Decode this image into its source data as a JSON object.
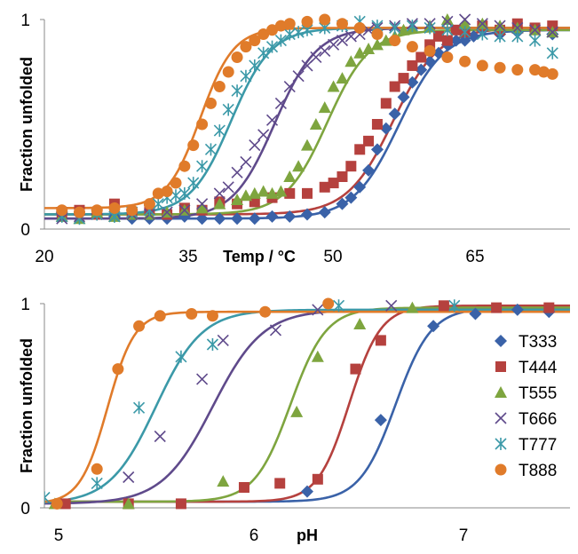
{
  "chart_data": [
    {
      "type": "scatter",
      "title": "",
      "xlabel": "Temp / °C",
      "ylabel": "Fraction unfolded",
      "xlim": [
        18,
        78
      ],
      "ylim": [
        0,
        1
      ],
      "xticks": [
        "20",
        "35",
        "50",
        "65"
      ],
      "yticks": [
        "0",
        "1"
      ],
      "grid": false,
      "legend": "none",
      "series": [
        {
          "name": "T333",
          "color": "#3a62a8",
          "marker": "diamond",
          "fit": {
            "mid": 58.5,
            "width": 2.6,
            "low": 0.05,
            "high": 0.95
          },
          "x": [
            20,
            22,
            24,
            26,
            28,
            30,
            32,
            34,
            36,
            38,
            40,
            42,
            44,
            46,
            48,
            50,
            52,
            53,
            54,
            55,
            56,
            57,
            58,
            59,
            60,
            61,
            62,
            63,
            64,
            65,
            66,
            67,
            68,
            70,
            72,
            74,
            76
          ],
          "y": [
            0.08,
            0.07,
            0.07,
            0.06,
            0.05,
            0.05,
            0.05,
            0.06,
            0.05,
            0.05,
            0.05,
            0.05,
            0.06,
            0.06,
            0.07,
            0.08,
            0.12,
            0.15,
            0.2,
            0.28,
            0.38,
            0.48,
            0.55,
            0.63,
            0.7,
            0.76,
            0.8,
            0.84,
            0.88,
            0.9,
            0.9,
            0.92,
            0.95,
            0.93,
            0.94,
            0.95,
            0.93
          ]
        },
        {
          "name": "T444",
          "color": "#b5413e",
          "marker": "square",
          "fit": {
            "mid": 57.8,
            "width": 2.6,
            "low": 0.07,
            "high": 0.96
          },
          "x": [
            20,
            22,
            24,
            26,
            28,
            30,
            32,
            34,
            36,
            38,
            40,
            42,
            44,
            46,
            48,
            50,
            51,
            52,
            53,
            54,
            55,
            56,
            57,
            58,
            59,
            60,
            61,
            62,
            63,
            64,
            65,
            66,
            68,
            70,
            72,
            74,
            76
          ],
          "y": [
            0.08,
            0.09,
            0.07,
            0.12,
            0.08,
            0.09,
            0.07,
            0.1,
            0.09,
            0.13,
            0.12,
            0.13,
            0.15,
            0.17,
            0.17,
            0.2,
            0.22,
            0.25,
            0.3,
            0.38,
            0.42,
            0.5,
            0.6,
            0.68,
            0.72,
            0.78,
            0.82,
            0.88,
            0.92,
            0.9,
            0.95,
            0.94,
            0.97,
            0.95,
            0.98,
            0.96,
            0.97
          ]
        },
        {
          "name": "T555",
          "color": "#7ea53f",
          "marker": "triangle",
          "fit": {
            "mid": 50.3,
            "width": 2.4,
            "low": 0.07,
            "high": 0.95
          },
          "x": [
            20,
            22,
            24,
            26,
            28,
            30,
            32,
            34,
            36,
            38,
            40,
            41,
            42,
            43,
            44,
            45,
            46,
            47,
            48,
            49,
            50,
            51,
            52,
            53,
            54,
            55,
            56,
            57,
            58,
            59,
            60,
            62,
            64,
            66,
            68,
            70,
            72,
            74,
            76
          ],
          "y": [
            0.06,
            0.05,
            0.08,
            0.06,
            0.07,
            0.07,
            0.08,
            0.09,
            0.1,
            0.12,
            0.14,
            0.16,
            0.17,
            0.18,
            0.17,
            0.18,
            0.25,
            0.3,
            0.4,
            0.5,
            0.58,
            0.68,
            0.72,
            0.8,
            0.84,
            0.86,
            0.88,
            0.9,
            0.92,
            0.95,
            0.96,
            0.97,
            1.0,
            0.98,
            0.98,
            0.97,
            0.96,
            0.95,
            0.94
          ]
        },
        {
          "name": "T666",
          "color": "#5f4a8b",
          "marker": "x",
          "fit": {
            "mid": 44.3,
            "width": 2.4,
            "low": 0.05,
            "high": 0.96
          },
          "x": [
            20,
            22,
            24,
            26,
            28,
            30,
            32,
            34,
            36,
            38,
            39,
            40,
            41,
            42,
            43,
            44,
            45,
            46,
            47,
            48,
            49,
            50,
            51,
            52,
            53,
            54,
            55,
            56,
            58,
            60,
            62,
            64,
            66,
            68,
            70,
            72,
            74,
            76
          ],
          "y": [
            0.05,
            0.06,
            0.07,
            0.06,
            0.07,
            0.07,
            0.08,
            0.09,
            0.12,
            0.17,
            0.2,
            0.27,
            0.32,
            0.4,
            0.45,
            0.52,
            0.6,
            0.68,
            0.73,
            0.78,
            0.82,
            0.85,
            0.88,
            0.9,
            0.92,
            0.93,
            0.95,
            0.96,
            0.97,
            0.98,
            0.98,
            0.99,
            1.0,
            0.98,
            0.97,
            0.96,
            0.95,
            0.94
          ]
        },
        {
          "name": "T777",
          "color": "#3b99a8",
          "marker": "asterisk",
          "fit": {
            "mid": 39.3,
            "width": 2.3,
            "low": 0.07,
            "high": 0.96
          },
          "x": [
            20,
            22,
            24,
            26,
            28,
            30,
            31,
            32,
            33,
            34,
            35,
            36,
            37,
            38,
            39,
            40,
            41,
            42,
            43,
            44,
            45,
            46,
            47,
            48,
            50,
            52,
            54,
            56,
            58,
            60,
            62,
            64,
            66,
            68,
            70,
            72,
            74,
            76
          ],
          "y": [
            0.06,
            0.05,
            0.07,
            0.06,
            0.08,
            0.09,
            0.12,
            0.15,
            0.16,
            0.17,
            0.22,
            0.3,
            0.38,
            0.47,
            0.57,
            0.66,
            0.73,
            0.78,
            0.84,
            0.87,
            0.9,
            0.93,
            0.94,
            0.95,
            0.96,
            0.97,
            0.99,
            0.97,
            0.96,
            0.97,
            0.96,
            0.95,
            0.94,
            0.93,
            0.92,
            0.92,
            0.9,
            0.84
          ]
        },
        {
          "name": "T888",
          "color": "#e07b2a",
          "marker": "circle",
          "fit": {
            "mid": 35.8,
            "width": 1.9,
            "low": 0.1,
            "high": 0.96
          },
          "x": [
            20,
            22,
            24,
            26,
            28,
            30,
            31,
            32,
            33,
            34,
            35,
            36,
            37,
            38,
            39,
            40,
            41,
            42,
            43,
            44,
            45,
            46,
            48,
            50,
            52,
            54,
            56,
            58,
            60,
            62,
            64,
            66,
            68,
            70,
            72,
            74,
            75,
            76
          ],
          "y": [
            0.09,
            0.08,
            0.09,
            0.1,
            0.09,
            0.12,
            0.17,
            0.18,
            0.22,
            0.3,
            0.4,
            0.5,
            0.6,
            0.68,
            0.75,
            0.82,
            0.87,
            0.9,
            0.93,
            0.95,
            0.97,
            0.98,
            0.99,
            1.0,
            0.98,
            0.96,
            0.93,
            0.9,
            0.87,
            0.85,
            0.82,
            0.8,
            0.78,
            0.77,
            0.76,
            0.76,
            0.75,
            0.74
          ]
        }
      ]
    },
    {
      "type": "scatter",
      "title": "",
      "xlabel": "pH",
      "ylabel": "Fraction unfolded",
      "xlim": [
        5.0,
        7.5
      ],
      "ylim": [
        0,
        1
      ],
      "xticks": [
        "5",
        "6",
        "7"
      ],
      "yticks": [
        "0",
        "1"
      ],
      "grid": false,
      "legend": "right",
      "series": [
        {
          "name": "T333",
          "color": "#3a62a8",
          "marker": "diamond",
          "fit": {
            "mid": 6.67,
            "width": 0.085,
            "low": 0.03,
            "high": 0.98
          },
          "x": [
            6.25,
            6.6,
            6.85,
            7.05,
            7.25,
            7.4
          ],
          "y": [
            0.08,
            0.43,
            0.89,
            0.95,
            0.97,
            0.96
          ]
        },
        {
          "name": "T444",
          "color": "#b5413e",
          "marker": "square",
          "fit": {
            "mid": 6.45,
            "width": 0.075,
            "low": 0.03,
            "high": 0.99
          },
          "x": [
            5.1,
            5.4,
            5.65,
            5.95,
            6.12,
            6.3,
            6.48,
            6.6,
            6.9,
            7.15,
            7.4
          ],
          "y": [
            0.02,
            0.02,
            0.02,
            0.1,
            0.12,
            0.14,
            0.68,
            0.82,
            0.99,
            0.98,
            0.98
          ]
        },
        {
          "name": "T555",
          "color": "#7ea53f",
          "marker": "triangle",
          "fit": {
            "mid": 6.17,
            "width": 0.085,
            "low": 0.03,
            "high": 0.98
          },
          "x": [
            5.05,
            5.4,
            5.85,
            6.2,
            6.3,
            6.5,
            6.75
          ],
          "y": [
            0.02,
            0.02,
            0.13,
            0.47,
            0.74,
            0.9,
            0.98
          ]
        },
        {
          "name": "T666",
          "color": "#5f4a8b",
          "marker": "x",
          "fit": {
            "mid": 5.8,
            "width": 0.12,
            "low": 0.02,
            "high": 0.97
          },
          "x": [
            5.4,
            5.55,
            5.75,
            5.85,
            6.1,
            6.3,
            6.65
          ],
          "y": [
            0.15,
            0.35,
            0.63,
            0.82,
            0.87,
            0.97,
            0.99
          ]
        },
        {
          "name": "T777",
          "color": "#3b99a8",
          "marker": "asterisk",
          "fit": {
            "mid": 5.53,
            "width": 0.11,
            "low": 0.02,
            "high": 0.97
          },
          "x": [
            5.0,
            5.25,
            5.45,
            5.65,
            5.8,
            6.4,
            6.95
          ],
          "y": [
            0.05,
            0.12,
            0.49,
            0.74,
            0.8,
            0.99,
            0.99
          ]
        },
        {
          "name": "T888",
          "color": "#e07b2a",
          "marker": "circle",
          "fit": {
            "mid": 5.3,
            "width": 0.065,
            "low": 0.02,
            "high": 0.96
          },
          "x": [
            5.06,
            5.25,
            5.35,
            5.45,
            5.55,
            5.7,
            5.8,
            6.05,
            6.35
          ],
          "y": [
            0.02,
            0.19,
            0.68,
            0.89,
            0.94,
            0.95,
            0.94,
            0.96,
            1.0
          ]
        }
      ]
    }
  ]
}
